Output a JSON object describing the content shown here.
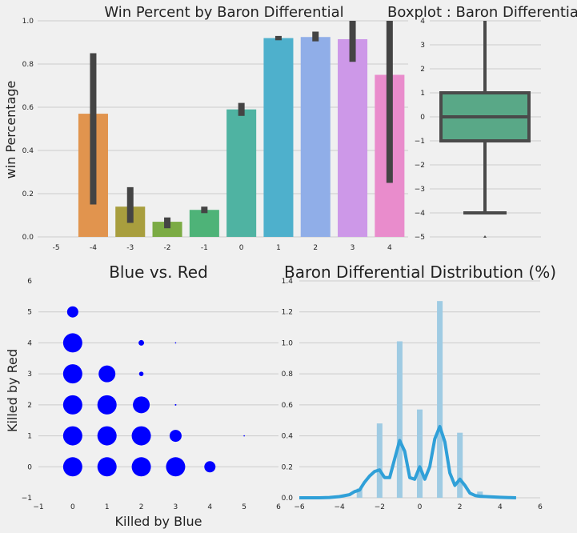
{
  "chart_data": [
    {
      "id": "bar",
      "type": "bar",
      "title": "Win Percent by Baron Differential",
      "ylabel": "win Percentage",
      "xlabel": "",
      "categories": [
        "-5",
        "-4",
        "-3",
        "-2",
        "-1",
        "0",
        "1",
        "2",
        "3",
        "4"
      ],
      "values": [
        null,
        0.57,
        0.14,
        0.07,
        0.125,
        0.59,
        0.92,
        0.925,
        0.915,
        0.75
      ],
      "error_low": [
        null,
        0.15,
        0.065,
        0.04,
        0.11,
        0.56,
        0.91,
        0.905,
        0.81,
        0.25
      ],
      "error_high": [
        null,
        0.85,
        0.23,
        0.09,
        0.14,
        0.62,
        0.93,
        0.95,
        1.0,
        1.0
      ],
      "colors": [
        "#e8e8e8",
        "#e1944e",
        "#a89e3e",
        "#7bab44",
        "#4eb378",
        "#4fb3a2",
        "#4eb0cc",
        "#90aee8",
        "#cd98e8",
        "#e98ccc"
      ],
      "errorbar_color": "#444444",
      "ylim": [
        0,
        1.0
      ],
      "yticks": [
        "0.0",
        "0.2",
        "0.4",
        "0.6",
        "0.8",
        "1.0"
      ],
      "grid": true
    },
    {
      "id": "boxplot",
      "type": "boxplot",
      "title": "Boxplot : Baron Differential",
      "ylim": [
        -5,
        4
      ],
      "yticks": [
        "−5",
        "−4",
        "−3",
        "−2",
        "−1",
        "0",
        "1",
        "2",
        "3",
        "4"
      ],
      "box": {
        "q1": -1,
        "median": 0,
        "q3": 1,
        "whisker_low": -4,
        "whisker_high": 4,
        "outliers": [
          -5
        ]
      },
      "box_color": "#59a887",
      "line_color": "#4a4a4a",
      "grid": true
    },
    {
      "id": "scatter",
      "type": "scatter",
      "title": "Blue vs. Red",
      "xlabel": "Killed by Blue",
      "ylabel": "Killed by Red",
      "xlim": [
        -1,
        6
      ],
      "ylim": [
        -1,
        6
      ],
      "xticks": [
        "−1",
        "0",
        "1",
        "2",
        "3",
        "4",
        "5",
        "6"
      ],
      "yticks": [
        "−1",
        "0",
        "1",
        "2",
        "3",
        "4",
        "5",
        "6"
      ],
      "color": "#0000ff",
      "points": [
        {
          "x": 0,
          "y": 0,
          "size": 12
        },
        {
          "x": 1,
          "y": 0,
          "size": 12
        },
        {
          "x": 2,
          "y": 0,
          "size": 12
        },
        {
          "x": 3,
          "y": 0,
          "size": 12
        },
        {
          "x": 4,
          "y": 0,
          "size": 7
        },
        {
          "x": 0,
          "y": 1,
          "size": 12
        },
        {
          "x": 1,
          "y": 1,
          "size": 12
        },
        {
          "x": 2,
          "y": 1,
          "size": 12
        },
        {
          "x": 3,
          "y": 1,
          "size": 7.5
        },
        {
          "x": 5,
          "y": 1,
          "size": 0.8
        },
        {
          "x": 0,
          "y": 2,
          "size": 12
        },
        {
          "x": 1,
          "y": 2,
          "size": 12
        },
        {
          "x": 2,
          "y": 2,
          "size": 10.5
        },
        {
          "x": 3,
          "y": 2,
          "size": 1
        },
        {
          "x": 0,
          "y": 3,
          "size": 12
        },
        {
          "x": 1,
          "y": 3,
          "size": 10.5
        },
        {
          "x": 2,
          "y": 3,
          "size": 2.8
        },
        {
          "x": 0,
          "y": 4,
          "size": 12
        },
        {
          "x": 2,
          "y": 4,
          "size": 3.5
        },
        {
          "x": 3,
          "y": 4,
          "size": 0.8
        },
        {
          "x": 0,
          "y": 5,
          "size": 7
        }
      ],
      "grid": true
    },
    {
      "id": "distplot",
      "type": "histogram",
      "title": "Baron Differential Distribution (%)",
      "xlim": [
        -6,
        6
      ],
      "ylim": [
        0,
        1.4
      ],
      "xticks": [
        "−6",
        "−4",
        "−2",
        "0",
        "2",
        "4",
        "6"
      ],
      "yticks": [
        "0.0",
        "0.2",
        "0.4",
        "0.6",
        "0.8",
        "1.0",
        "1.2",
        "1.4"
      ],
      "bins": [
        {
          "x": -3,
          "height": 0.06
        },
        {
          "x": -2,
          "height": 0.48
        },
        {
          "x": -1,
          "height": 1.01
        },
        {
          "x": 0,
          "height": 0.57
        },
        {
          "x": 1,
          "height": 1.27
        },
        {
          "x": 2,
          "height": 0.42
        },
        {
          "x": 3,
          "height": 0.04
        }
      ],
      "bar_color": "#9fcbe3",
      "kde_color": "#30a0d8",
      "kde": [
        [
          -6,
          0.0
        ],
        [
          -5.5,
          0.0
        ],
        [
          -5,
          0.0
        ],
        [
          -4.5,
          0.002
        ],
        [
          -4,
          0.008
        ],
        [
          -3.5,
          0.02
        ],
        [
          -3.25,
          0.04
        ],
        [
          -3,
          0.05
        ],
        [
          -2.75,
          0.1
        ],
        [
          -2.5,
          0.14
        ],
        [
          -2.25,
          0.17
        ],
        [
          -2,
          0.18
        ],
        [
          -1.75,
          0.13
        ],
        [
          -1.5,
          0.13
        ],
        [
          -1.25,
          0.25
        ],
        [
          -1,
          0.37
        ],
        [
          -0.75,
          0.3
        ],
        [
          -0.5,
          0.13
        ],
        [
          -0.25,
          0.12
        ],
        [
          0,
          0.2
        ],
        [
          0.25,
          0.12
        ],
        [
          0.5,
          0.2
        ],
        [
          0.75,
          0.38
        ],
        [
          1,
          0.46
        ],
        [
          1.25,
          0.36
        ],
        [
          1.5,
          0.16
        ],
        [
          1.75,
          0.08
        ],
        [
          2,
          0.12
        ],
        [
          2.25,
          0.08
        ],
        [
          2.5,
          0.03
        ],
        [
          2.75,
          0.015
        ],
        [
          3,
          0.01
        ],
        [
          3.5,
          0.006
        ],
        [
          4,
          0.003
        ],
        [
          4.5,
          0.001
        ],
        [
          4.8,
          0.0
        ]
      ],
      "grid": true
    }
  ]
}
